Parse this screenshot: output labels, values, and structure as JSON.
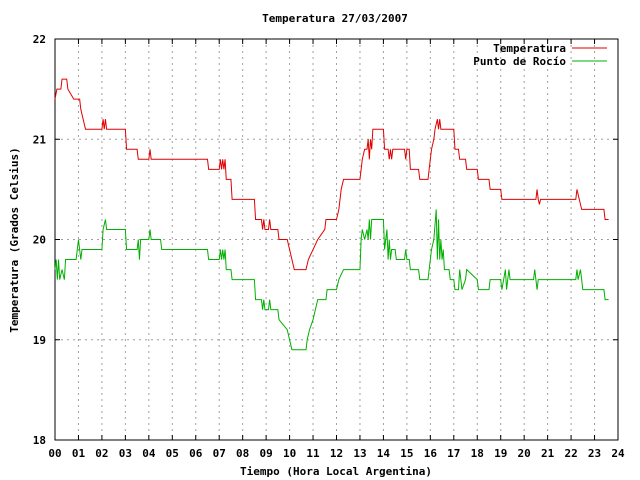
{
  "chart_data": {
    "type": "line",
    "title": "Temperatura 27/03/2007",
    "xlabel": "Tiempo (Hora Local Argentina)",
    "ylabel": "Temperatura (Grados Celsius)",
    "xlim": [
      0,
      24
    ],
    "ylim": [
      18,
      22
    ],
    "x_ticks": [
      "00",
      "01",
      "02",
      "03",
      "04",
      "05",
      "06",
      "07",
      "08",
      "09",
      "10",
      "11",
      "12",
      "13",
      "14",
      "15",
      "16",
      "17",
      "18",
      "19",
      "20",
      "21",
      "22",
      "23",
      "24"
    ],
    "y_ticks": [
      "18",
      "19",
      "20",
      "21",
      "22"
    ],
    "grid": true,
    "legend_position": "top-right",
    "series": [
      {
        "name": "Temperatura",
        "color": "#e00000",
        "points": [
          [
            0.0,
            21.4
          ],
          [
            0.08,
            21.5
          ],
          [
            0.25,
            21.5
          ],
          [
            0.3,
            21.6
          ],
          [
            0.5,
            21.6
          ],
          [
            0.55,
            21.5
          ],
          [
            0.8,
            21.4
          ],
          [
            1.05,
            21.4
          ],
          [
            1.1,
            21.3
          ],
          [
            1.2,
            21.2
          ],
          [
            1.3,
            21.1
          ],
          [
            2.0,
            21.1
          ],
          [
            2.05,
            21.2
          ],
          [
            2.1,
            21.1
          ],
          [
            2.15,
            21.2
          ],
          [
            2.2,
            21.1
          ],
          [
            3.0,
            21.1
          ],
          [
            3.05,
            20.9
          ],
          [
            3.5,
            20.9
          ],
          [
            3.55,
            20.8
          ],
          [
            4.0,
            20.8
          ],
          [
            4.05,
            20.9
          ],
          [
            4.1,
            20.8
          ],
          [
            6.5,
            20.8
          ],
          [
            6.55,
            20.7
          ],
          [
            7.0,
            20.7
          ],
          [
            7.05,
            20.8
          ],
          [
            7.1,
            20.7
          ],
          [
            7.15,
            20.8
          ],
          [
            7.2,
            20.7
          ],
          [
            7.25,
            20.8
          ],
          [
            7.3,
            20.6
          ],
          [
            7.5,
            20.6
          ],
          [
            7.55,
            20.4
          ],
          [
            8.5,
            20.4
          ],
          [
            8.55,
            20.2
          ],
          [
            8.8,
            20.2
          ],
          [
            8.85,
            20.1
          ],
          [
            8.9,
            20.2
          ],
          [
            8.95,
            20.1
          ],
          [
            9.1,
            20.1
          ],
          [
            9.15,
            20.2
          ],
          [
            9.2,
            20.1
          ],
          [
            9.5,
            20.1
          ],
          [
            9.55,
            20.0
          ],
          [
            9.9,
            20.0
          ],
          [
            10.0,
            19.9
          ],
          [
            10.1,
            19.8
          ],
          [
            10.2,
            19.7
          ],
          [
            10.7,
            19.7
          ],
          [
            10.8,
            19.8
          ],
          [
            11.0,
            19.9
          ],
          [
            11.2,
            20.0
          ],
          [
            11.5,
            20.1
          ],
          [
            11.55,
            20.2
          ],
          [
            12.0,
            20.2
          ],
          [
            12.1,
            20.3
          ],
          [
            12.2,
            20.5
          ],
          [
            12.3,
            20.6
          ],
          [
            13.0,
            20.6
          ],
          [
            13.1,
            20.8
          ],
          [
            13.2,
            20.9
          ],
          [
            13.3,
            20.9
          ],
          [
            13.35,
            21.0
          ],
          [
            13.4,
            20.8
          ],
          [
            13.45,
            21.0
          ],
          [
            13.5,
            20.9
          ],
          [
            13.55,
            21.1
          ],
          [
            14.0,
            21.1
          ],
          [
            14.05,
            20.9
          ],
          [
            14.2,
            20.9
          ],
          [
            14.25,
            20.8
          ],
          [
            14.3,
            20.9
          ],
          [
            14.35,
            20.8
          ],
          [
            14.4,
            20.9
          ],
          [
            14.9,
            20.9
          ],
          [
            14.95,
            20.8
          ],
          [
            15.0,
            20.9
          ],
          [
            15.1,
            20.9
          ],
          [
            15.15,
            20.7
          ],
          [
            15.5,
            20.7
          ],
          [
            15.55,
            20.6
          ],
          [
            15.9,
            20.6
          ],
          [
            15.95,
            20.7
          ],
          [
            16.05,
            20.9
          ],
          [
            16.15,
            21.0
          ],
          [
            16.2,
            21.1
          ],
          [
            16.25,
            21.15
          ],
          [
            16.3,
            21.2
          ],
          [
            16.35,
            21.1
          ],
          [
            16.4,
            21.2
          ],
          [
            16.45,
            21.1
          ],
          [
            16.5,
            21.1
          ],
          [
            17.0,
            21.1
          ],
          [
            17.05,
            20.9
          ],
          [
            17.2,
            20.9
          ],
          [
            17.25,
            20.8
          ],
          [
            17.5,
            20.8
          ],
          [
            17.55,
            20.7
          ],
          [
            18.0,
            20.7
          ],
          [
            18.05,
            20.6
          ],
          [
            18.5,
            20.6
          ],
          [
            18.55,
            20.5
          ],
          [
            19.0,
            20.5
          ],
          [
            19.05,
            20.4
          ],
          [
            20.5,
            20.4
          ],
          [
            20.55,
            20.5
          ],
          [
            20.6,
            20.4
          ],
          [
            20.65,
            20.35
          ],
          [
            20.7,
            20.4
          ],
          [
            22.2,
            20.4
          ],
          [
            22.25,
            20.5
          ],
          [
            22.35,
            20.4
          ],
          [
            22.45,
            20.3
          ],
          [
            23.4,
            20.3
          ],
          [
            23.45,
            20.2
          ],
          [
            23.6,
            20.2
          ]
        ]
      },
      {
        "name": "Punto de Rocío",
        "color": "#00b000",
        "points": [
          [
            0.0,
            19.7
          ],
          [
            0.05,
            19.8
          ],
          [
            0.1,
            19.6
          ],
          [
            0.15,
            19.8
          ],
          [
            0.2,
            19.6
          ],
          [
            0.3,
            19.7
          ],
          [
            0.4,
            19.6
          ],
          [
            0.45,
            19.8
          ],
          [
            0.9,
            19.8
          ],
          [
            0.95,
            19.9
          ],
          [
            1.0,
            20.0
          ],
          [
            1.05,
            19.9
          ],
          [
            1.1,
            19.8
          ],
          [
            1.15,
            19.9
          ],
          [
            1.3,
            19.9
          ],
          [
            2.0,
            19.9
          ],
          [
            2.05,
            20.1
          ],
          [
            2.15,
            20.2
          ],
          [
            2.2,
            20.1
          ],
          [
            3.0,
            20.1
          ],
          [
            3.05,
            19.9
          ],
          [
            3.5,
            19.9
          ],
          [
            3.55,
            20.0
          ],
          [
            3.6,
            19.8
          ],
          [
            3.65,
            20.0
          ],
          [
            4.0,
            20.0
          ],
          [
            4.05,
            20.1
          ],
          [
            4.1,
            20.0
          ],
          [
            4.5,
            20.0
          ],
          [
            4.55,
            19.9
          ],
          [
            6.5,
            19.9
          ],
          [
            6.55,
            19.8
          ],
          [
            7.0,
            19.8
          ],
          [
            7.05,
            19.9
          ],
          [
            7.1,
            19.8
          ],
          [
            7.15,
            19.9
          ],
          [
            7.2,
            19.8
          ],
          [
            7.25,
            19.9
          ],
          [
            7.3,
            19.7
          ],
          [
            7.5,
            19.7
          ],
          [
            7.55,
            19.6
          ],
          [
            8.5,
            19.6
          ],
          [
            8.55,
            19.4
          ],
          [
            8.8,
            19.4
          ],
          [
            8.85,
            19.3
          ],
          [
            8.9,
            19.4
          ],
          [
            8.95,
            19.3
          ],
          [
            9.1,
            19.3
          ],
          [
            9.15,
            19.4
          ],
          [
            9.2,
            19.3
          ],
          [
            9.5,
            19.3
          ],
          [
            9.55,
            19.2
          ],
          [
            9.9,
            19.1
          ],
          [
            10.0,
            19.0
          ],
          [
            10.1,
            18.9
          ],
          [
            10.7,
            18.9
          ],
          [
            10.75,
            19.0
          ],
          [
            10.85,
            19.1
          ],
          [
            11.0,
            19.2
          ],
          [
            11.1,
            19.3
          ],
          [
            11.2,
            19.4
          ],
          [
            11.55,
            19.4
          ],
          [
            11.6,
            19.5
          ],
          [
            12.0,
            19.5
          ],
          [
            12.1,
            19.6
          ],
          [
            12.3,
            19.7
          ],
          [
            13.0,
            19.7
          ],
          [
            13.05,
            20.0
          ],
          [
            13.1,
            20.1
          ],
          [
            13.2,
            20.0
          ],
          [
            13.3,
            20.1
          ],
          [
            13.35,
            20.0
          ],
          [
            13.4,
            20.2
          ],
          [
            13.45,
            20.0
          ],
          [
            13.5,
            20.2
          ],
          [
            14.0,
            20.2
          ],
          [
            14.05,
            19.9
          ],
          [
            14.15,
            20.1
          ],
          [
            14.2,
            19.8
          ],
          [
            14.25,
            20.0
          ],
          [
            14.3,
            19.8
          ],
          [
            14.35,
            19.9
          ],
          [
            14.5,
            19.9
          ],
          [
            14.55,
            19.8
          ],
          [
            14.9,
            19.8
          ],
          [
            14.95,
            19.9
          ],
          [
            15.0,
            19.8
          ],
          [
            15.1,
            19.8
          ],
          [
            15.15,
            19.7
          ],
          [
            15.5,
            19.7
          ],
          [
            15.55,
            19.6
          ],
          [
            15.9,
            19.6
          ],
          [
            15.95,
            19.7
          ],
          [
            16.05,
            19.9
          ],
          [
            16.15,
            20.0
          ],
          [
            16.25,
            20.3
          ],
          [
            16.3,
            19.8
          ],
          [
            16.35,
            20.2
          ],
          [
            16.4,
            19.8
          ],
          [
            16.45,
            20.0
          ],
          [
            16.5,
            19.8
          ],
          [
            16.55,
            19.9
          ],
          [
            16.6,
            19.7
          ],
          [
            16.8,
            19.7
          ],
          [
            16.85,
            19.6
          ],
          [
            17.0,
            19.6
          ],
          [
            17.05,
            19.5
          ],
          [
            17.2,
            19.5
          ],
          [
            17.25,
            19.7
          ],
          [
            17.3,
            19.6
          ],
          [
            17.35,
            19.5
          ],
          [
            17.5,
            19.6
          ],
          [
            17.55,
            19.7
          ],
          [
            18.0,
            19.6
          ],
          [
            18.05,
            19.5
          ],
          [
            18.5,
            19.5
          ],
          [
            18.55,
            19.6
          ],
          [
            19.0,
            19.6
          ],
          [
            19.05,
            19.5
          ],
          [
            19.2,
            19.7
          ],
          [
            19.25,
            19.5
          ],
          [
            19.3,
            19.6
          ],
          [
            19.35,
            19.7
          ],
          [
            19.4,
            19.6
          ],
          [
            20.4,
            19.6
          ],
          [
            20.45,
            19.7
          ],
          [
            20.5,
            19.6
          ],
          [
            20.55,
            19.5
          ],
          [
            20.6,
            19.6
          ],
          [
            22.2,
            19.6
          ],
          [
            22.25,
            19.7
          ],
          [
            22.3,
            19.6
          ],
          [
            22.4,
            19.7
          ],
          [
            22.45,
            19.6
          ],
          [
            22.5,
            19.5
          ],
          [
            23.4,
            19.5
          ],
          [
            23.45,
            19.4
          ],
          [
            23.6,
            19.4
          ]
        ]
      }
    ]
  }
}
